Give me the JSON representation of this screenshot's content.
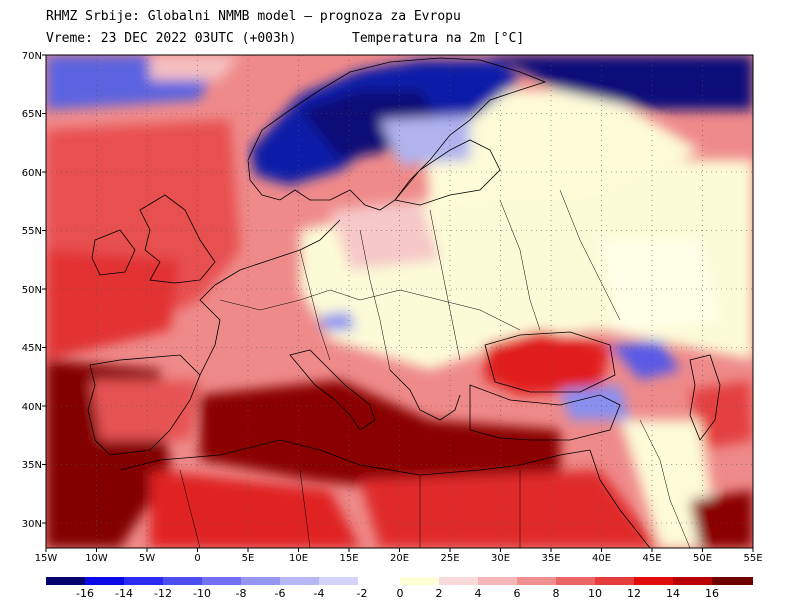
{
  "header": {
    "line1": "RHMZ Srbije: Globalni NMMB model — prognoza za Evropu",
    "line2": "Vreme: 23 DEC 2022 03UTC (+003h)",
    "line3": "Temperatura na 2m [°C]"
  },
  "lat_labels": [
    "70N",
    "65N",
    "60N",
    "55N",
    "50N",
    "45N",
    "40N",
    "35N",
    "30N"
  ],
  "lon_labels": [
    "15W",
    "10W",
    "5W",
    "0",
    "5E",
    "10E",
    "15E",
    "20E",
    "25E",
    "30E",
    "35E",
    "40E",
    "45E",
    "50E",
    "55E"
  ],
  "colorbar": {
    "cold_labels": [
      "-16",
      "-14",
      "-12",
      "-10",
      "-8",
      "-6",
      "-4",
      "-2"
    ],
    "warm_labels": [
      "0",
      "2",
      "4",
      "6",
      "8",
      "10",
      "12",
      "14",
      "16"
    ],
    "cold_colors": [
      "#04006b",
      "#0a0ae6",
      "#2b2bf3",
      "#4e4ef0",
      "#7070f0",
      "#9595f2",
      "#b7b7f5",
      "#d4d4fb"
    ],
    "warm_colors": [
      "#ffffd8",
      "#f9dada",
      "#f4b6b6",
      "#f08f8f",
      "#ea6666",
      "#e63c3c",
      "#e10d0d",
      "#b80000",
      "#6e0000"
    ]
  }
}
